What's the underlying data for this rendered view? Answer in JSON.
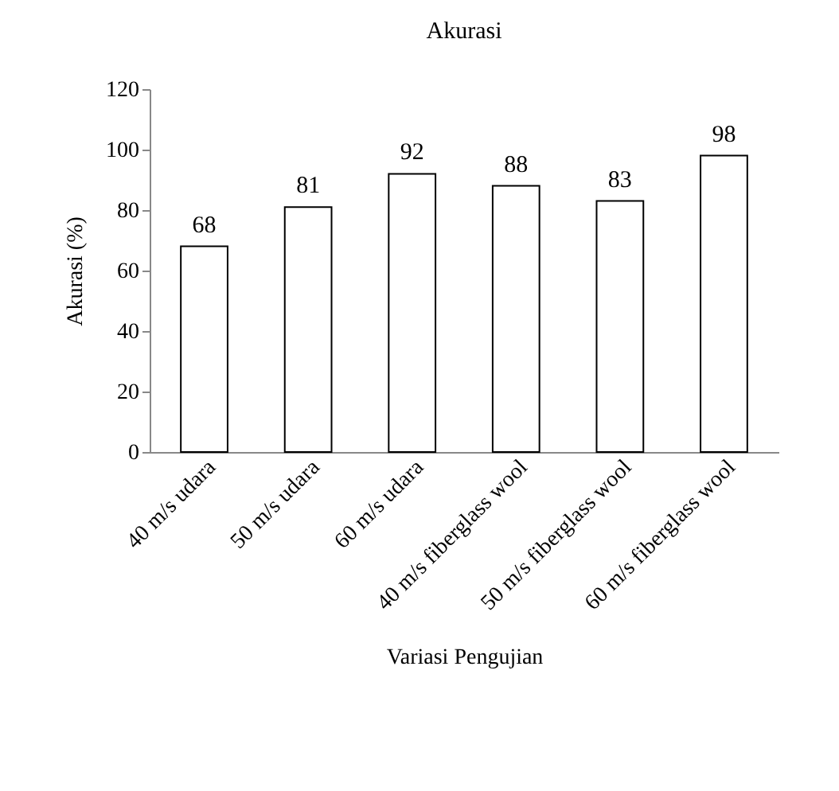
{
  "chart_data": {
    "type": "bar",
    "title": "Akurasi",
    "xlabel": "Variasi Pengujian",
    "ylabel": "Akurasi (%)",
    "categories": [
      "40 m/s udara",
      "50 m/s udara",
      "60 m/s udara",
      "40 m/s fiberglass wool",
      "50 m/s fiberglass wool",
      "60 m/s fiberglass wool"
    ],
    "values": [
      68,
      81,
      92,
      88,
      83,
      98
    ],
    "color": "#ffffff",
    "ylim": [
      0,
      120
    ],
    "yticks": [
      0,
      20,
      40,
      60,
      80,
      100,
      120
    ],
    "grid": false,
    "data_labels": true
  }
}
